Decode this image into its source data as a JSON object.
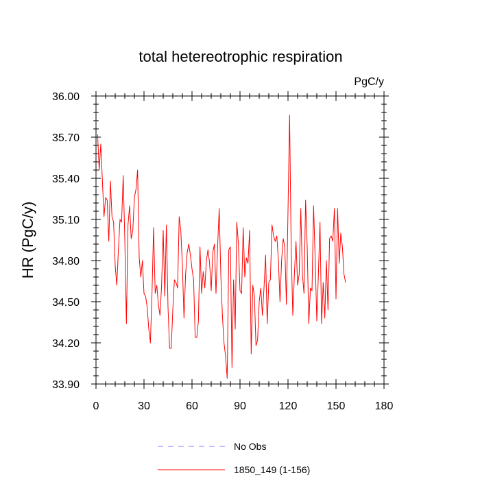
{
  "chart_data": {
    "type": "line",
    "title": "total hetereotrophic respiration",
    "units": "PgC/y",
    "ylabel": "HR  (PgC/y)",
    "xlabel": "",
    "xlim": [
      0,
      180
    ],
    "ylim": [
      33.9,
      36.0
    ],
    "xticks": [
      0,
      30,
      60,
      90,
      120,
      150,
      180
    ],
    "xtick_labels": [
      "0",
      "30",
      "60",
      "90",
      "120",
      "150",
      "180"
    ],
    "yticks": [
      33.9,
      34.2,
      34.5,
      34.8,
      35.1,
      35.4,
      35.7,
      36.0
    ],
    "ytick_labels": [
      "33.90",
      "34.20",
      "34.50",
      "34.80",
      "35.10",
      "35.40",
      "35.70",
      "36.00"
    ],
    "grid": false,
    "legend_placement": "bottom-center",
    "series": [
      {
        "name": "1850_149 (1-156)",
        "color": "#ff0000",
        "style": "solid",
        "x": [
          1,
          2,
          3,
          4,
          5,
          6,
          7,
          8,
          9,
          10,
          11,
          12,
          13,
          14,
          15,
          16,
          17,
          18,
          19,
          20,
          21,
          22,
          23,
          24,
          25,
          26,
          27,
          28,
          29,
          30,
          31,
          32,
          33,
          34,
          35,
          36,
          37,
          38,
          39,
          40,
          41,
          42,
          43,
          44,
          45,
          46,
          47,
          48,
          49,
          50,
          51,
          52,
          53,
          54,
          55,
          56,
          57,
          58,
          59,
          60,
          61,
          62,
          63,
          64,
          65,
          66,
          67,
          68,
          69,
          70,
          71,
          72,
          73,
          74,
          75,
          76,
          77,
          78,
          79,
          80,
          81,
          82,
          83,
          84,
          85,
          86,
          87,
          88,
          89,
          90,
          91,
          92,
          93,
          94,
          95,
          96,
          97,
          98,
          99,
          100,
          101,
          102,
          103,
          104,
          105,
          106,
          107,
          108,
          109,
          110,
          111,
          112,
          113,
          114,
          115,
          116,
          117,
          118,
          119,
          120,
          121,
          122,
          123,
          124,
          125,
          126,
          127,
          128,
          129,
          130,
          131,
          132,
          133,
          134,
          135,
          136,
          137,
          138,
          139,
          140,
          141,
          142,
          143,
          144,
          145,
          146,
          147,
          148,
          149,
          150,
          151,
          152,
          153,
          154,
          155,
          156
        ],
        "values": [
          35.72,
          35.46,
          35.65,
          35.38,
          35.12,
          35.26,
          35.24,
          34.94,
          35.38,
          35.12,
          35.08,
          34.76,
          34.62,
          34.88,
          35.1,
          35.08,
          35.42,
          34.96,
          34.34,
          35.06,
          35.2,
          34.96,
          35.02,
          35.26,
          35.32,
          35.46,
          34.82,
          34.68,
          34.8,
          34.56,
          34.54,
          34.46,
          34.3,
          34.2,
          34.56,
          35.04,
          34.56,
          34.62,
          34.48,
          34.4,
          34.62,
          35.02,
          34.54,
          35.06,
          34.46,
          34.16,
          34.16,
          34.44,
          34.66,
          34.64,
          34.6,
          35.12,
          35.02,
          34.76,
          34.38,
          34.7,
          34.86,
          34.92,
          34.84,
          34.74,
          34.66,
          34.24,
          34.24,
          34.36,
          34.9,
          34.56,
          34.72,
          34.6,
          34.8,
          34.88,
          34.78,
          34.58,
          34.86,
          34.92,
          34.56,
          34.9,
          35.18,
          34.7,
          34.4,
          34.2,
          34.1,
          33.94,
          34.88,
          34.9,
          34.02,
          34.66,
          34.3,
          35.08,
          34.92,
          34.58,
          34.56,
          35.04,
          34.68,
          34.82,
          34.78,
          35.02,
          34.12,
          34.62,
          34.54,
          34.18,
          34.22,
          34.5,
          34.6,
          34.4,
          34.6,
          34.84,
          34.34,
          34.64,
          34.66,
          35.06,
          34.98,
          34.94,
          34.98,
          34.8,
          34.5,
          34.8,
          34.96,
          34.9,
          34.48,
          35.16,
          35.86,
          34.88,
          34.4,
          34.7,
          34.94,
          34.62,
          34.7,
          35.18,
          34.7,
          34.56,
          35.24,
          34.9,
          34.34,
          34.6,
          34.58,
          35.2,
          34.8,
          34.36,
          34.7,
          35.08,
          34.34,
          34.64,
          34.38,
          34.8,
          34.44,
          34.96,
          34.98,
          34.94,
          35.18,
          34.52,
          35.18,
          34.78,
          35.0,
          34.9,
          34.7,
          34.64
        ]
      }
    ],
    "legend": [
      {
        "label": "No Obs",
        "color": "#8080ff",
        "style": "dashed"
      },
      {
        "label": "1850_149 (1-156)",
        "color": "#ff0000",
        "style": "solid"
      }
    ]
  }
}
